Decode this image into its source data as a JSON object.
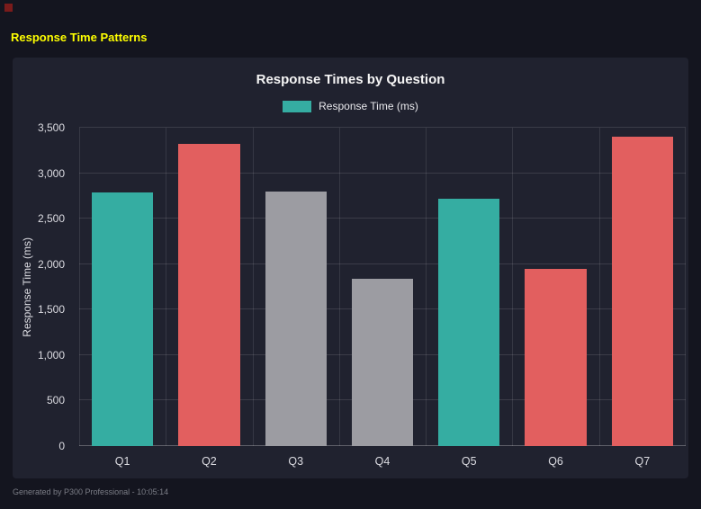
{
  "page": {
    "title": "Response Time Patterns",
    "footer": "Generated by P300 Professional - 10:05:14"
  },
  "colors": {
    "page_bg": "#14151f",
    "panel_bg": "#20222f",
    "accent_yellow": "#ffff00",
    "teal": "#35ada2",
    "red": "#e25f5f",
    "gray": "#9c9ca2"
  },
  "chart_data": {
    "type": "bar",
    "title": "Response Times by Question",
    "legend": {
      "label": "Response Time (ms)",
      "color": "#35ada2",
      "position": "top"
    },
    "categories": [
      "Q1",
      "Q2",
      "Q3",
      "Q4",
      "Q5",
      "Q6",
      "Q7"
    ],
    "values": [
      2790,
      3320,
      2800,
      1840,
      2720,
      1950,
      3400
    ],
    "bar_colors": [
      "#35ada2",
      "#e25f5f",
      "#9c9ca2",
      "#9c9ca2",
      "#35ada2",
      "#e25f5f",
      "#e25f5f"
    ],
    "xlabel": "",
    "ylabel": "Response Time (ms)",
    "ylim": [
      0,
      3500
    ],
    "ytick_values": [
      0,
      500,
      1000,
      1500,
      2000,
      2500,
      3000,
      3500
    ],
    "ytick_labels": [
      "0",
      "500",
      "1,000",
      "1,500",
      "2,000",
      "2,500",
      "3,000",
      "3,500"
    ],
    "grid": true
  }
}
